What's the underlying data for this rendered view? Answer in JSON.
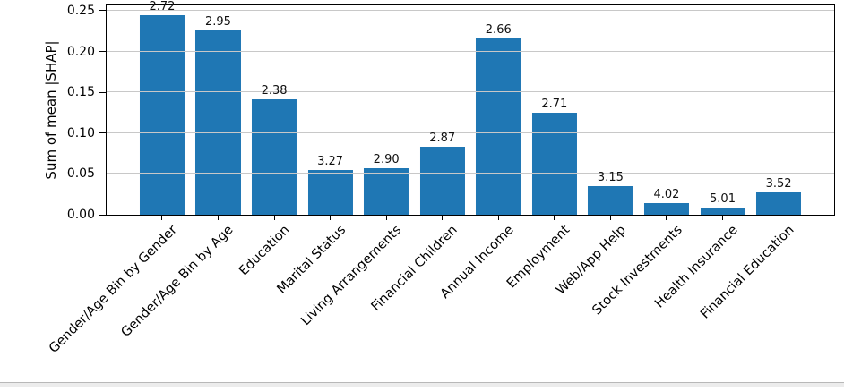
{
  "chart_data": {
    "type": "bar",
    "title": "",
    "xlabel": "",
    "ylabel": "Sum of mean |SHAP|",
    "categories": [
      "Gender/Age Bin by Gender",
      "Gender/Age Bin by Age",
      "Education",
      "Marital Status",
      "Living Arrangements",
      "Financial Children",
      "Annual Income",
      "Employment",
      "Web/App Help",
      "Stock Investments",
      "Health Insurance",
      "Financial Education"
    ],
    "values": [
      0.245,
      0.226,
      0.141,
      0.055,
      0.057,
      0.083,
      0.216,
      0.125,
      0.035,
      0.014,
      0.009,
      0.027
    ],
    "bar_labels": [
      "2.72",
      "2.95",
      "2.38",
      "3.27",
      "2.90",
      "2.87",
      "2.66",
      "2.71",
      "3.15",
      "4.02",
      "5.01",
      "3.52"
    ],
    "ytick_values": [
      0,
      0.05,
      0.1,
      0.15,
      0.2,
      0.25
    ],
    "ytick_labels": [
      "0.00",
      "0.05",
      "0.10",
      "0.15",
      "0.20",
      "0.25"
    ],
    "ylim": [
      0,
      0.2565
    ],
    "xlim": [
      -0.99,
      11.99
    ],
    "bar_width_units": 0.8,
    "x_tick_rotation_deg": 45,
    "grid": true,
    "legend_position": "none",
    "colors": {
      "bar": "#1f77b4",
      "grid": "#c8c8c8",
      "spine": "#000000",
      "text": "#000000"
    }
  },
  "footer": {
    "divider_color": "#ececec"
  }
}
